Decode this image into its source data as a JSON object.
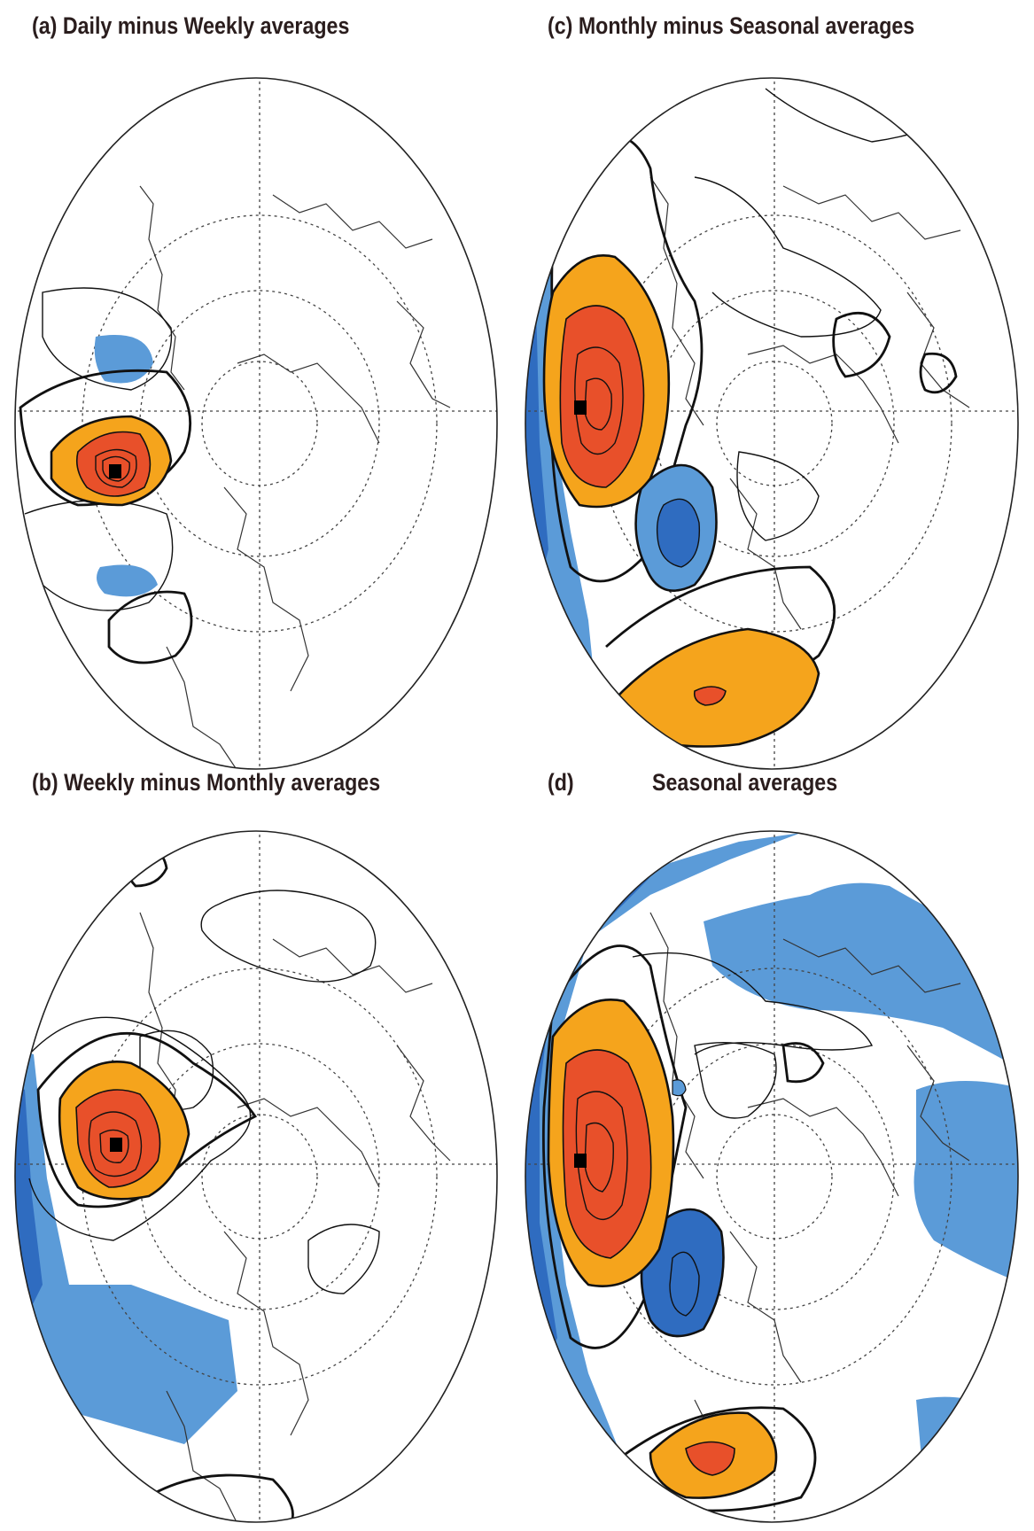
{
  "panels": [
    {
      "id": "a",
      "title": "(a) Daily minus Weekly averages"
    },
    {
      "id": "c",
      "title": "(c) Monthly minus Seasonal averages"
    },
    {
      "id": "b",
      "title": "(b) Weekly minus Monthly averages"
    },
    {
      "id": "d",
      "title_letter": "(d)",
      "title": "Seasonal averages"
    }
  ],
  "colors": {
    "positive_light": "#f5a41c",
    "positive_strong": "#e8502a",
    "negative_light": "#5b9bd8",
    "negative_strong": "#2f6cc0",
    "contour": "#111111",
    "coast": "#333333"
  },
  "projection": "polar stereographic, Northern Hemisphere",
  "base_point_marker": "black-square"
}
